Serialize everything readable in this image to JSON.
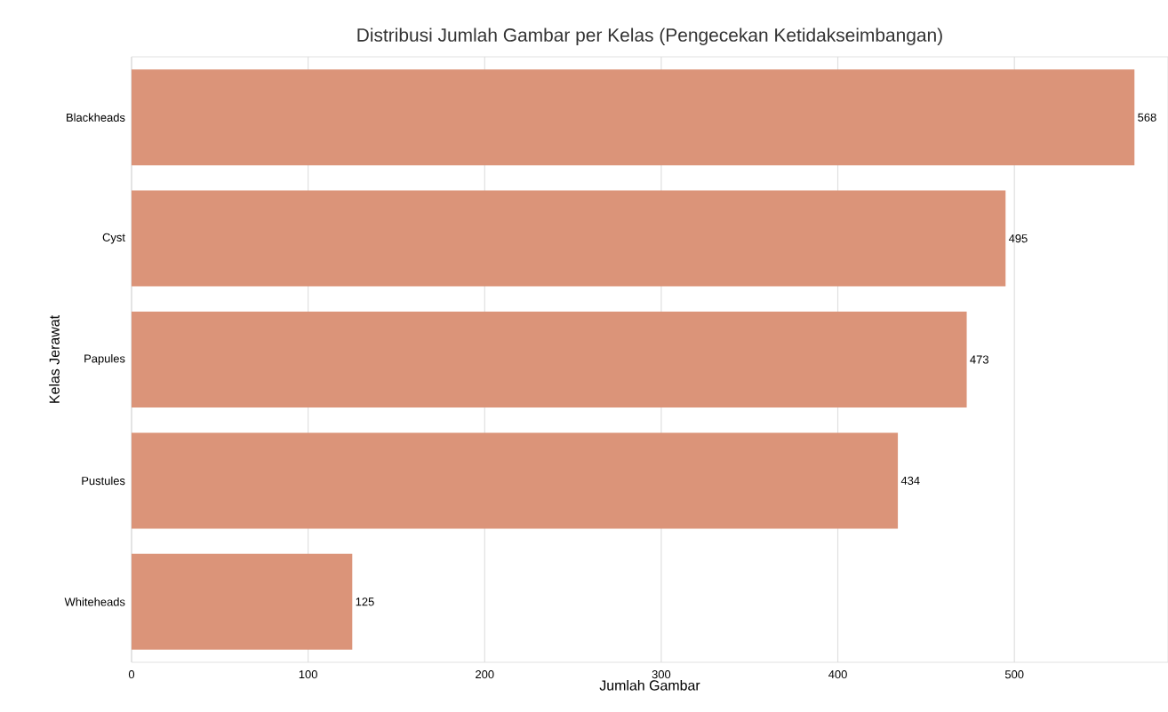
{
  "chart_data": {
    "type": "bar",
    "orientation": "horizontal",
    "title": "Distribusi Jumlah Gambar per Kelas (Pengecekan Ketidakseimbangan)",
    "xlabel": "Jumlah Gambar",
    "ylabel": "Kelas Jerawat",
    "categories": [
      "Blackheads",
      "Cyst",
      "Papules",
      "Pustules",
      "Whiteheads"
    ],
    "values": [
      568,
      495,
      473,
      434,
      125
    ],
    "color": "#db9479",
    "data_labels": true,
    "xlim": [
      0,
      587
    ],
    "xticks": [
      0,
      100,
      200,
      300,
      400,
      500
    ],
    "grid": "x"
  }
}
